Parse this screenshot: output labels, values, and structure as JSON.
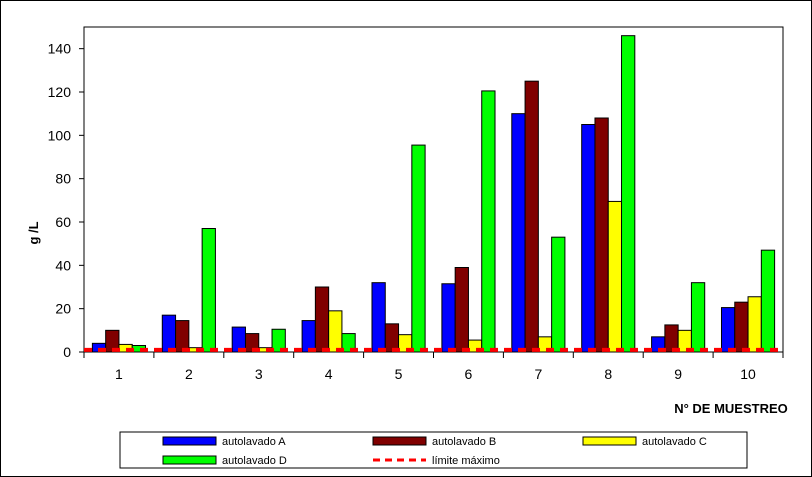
{
  "chart_data": {
    "type": "bar",
    "title": "",
    "xlabel": "N° DE MUESTREO",
    "ylabel": "g /L",
    "ylim": [
      0,
      150
    ],
    "yticks": [
      0,
      20,
      40,
      60,
      80,
      100,
      120,
      140
    ],
    "categories": [
      "1",
      "2",
      "3",
      "4",
      "5",
      "6",
      "7",
      "8",
      "9",
      "10"
    ],
    "series": [
      {
        "name": "autolavado A",
        "color": "#0000ff",
        "values": [
          4,
          17,
          11.5,
          14.5,
          32,
          31.5,
          110,
          105,
          7,
          20.5
        ]
      },
      {
        "name": "autolavado B",
        "color": "#800000",
        "values": [
          10,
          14.5,
          8.5,
          30,
          13,
          39,
          125,
          108,
          12.5,
          23
        ]
      },
      {
        "name": "autolavado C",
        "color": "#ffff00",
        "values": [
          3.5,
          2,
          2,
          19,
          8,
          5.5,
          7,
          69.5,
          10,
          25.5
        ]
      },
      {
        "name": "autolavado D",
        "color": "#00ff00",
        "values": [
          3,
          57,
          10.5,
          8.5,
          95.5,
          120.5,
          53,
          146,
          32,
          47
        ]
      }
    ],
    "limit_line": {
      "name": "límite máximo",
      "color": "#ff0000",
      "value": 1
    },
    "grid": false,
    "legend_position": "bottom"
  }
}
